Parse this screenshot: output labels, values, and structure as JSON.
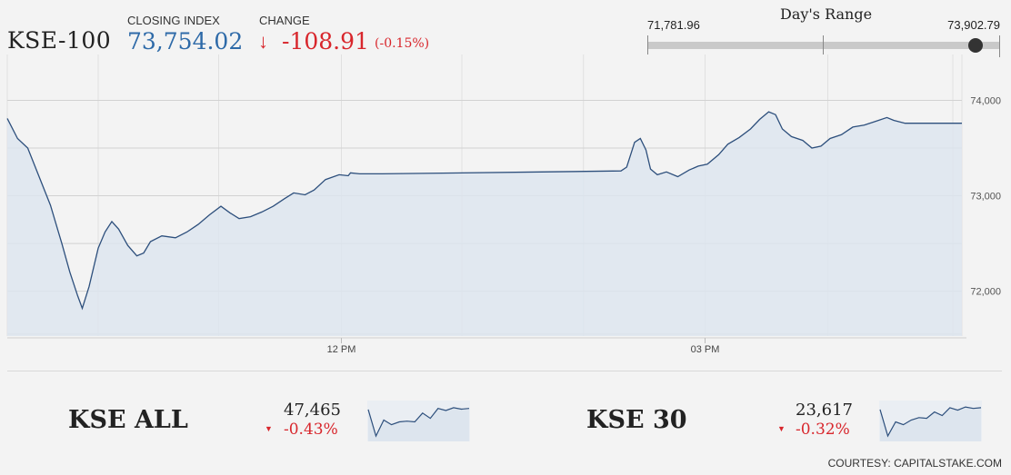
{
  "header": {
    "index_name": "KSE-100",
    "closing_label": "CLOSING INDEX",
    "closing_value": "73,754.02",
    "change_label": "CHANGE",
    "change_arrow": "↓",
    "change_value": "-108.91",
    "change_percent": "(-0.15%)"
  },
  "range": {
    "title": "Day's Range",
    "low": "71,781.96",
    "high": "73,902.79",
    "current_position": 0.93
  },
  "chart_data": {
    "type": "area",
    "title": "",
    "xlabel": "",
    "ylabel": "",
    "x_ticks": [
      "12 PM",
      "03 PM"
    ],
    "y_ticks": [
      "74,000",
      "73,000",
      "72,000"
    ],
    "ylim": [
      71530,
      74480
    ],
    "grid": true,
    "series": [
      {
        "values": [
          [
            0,
            73810
          ],
          [
            9,
            73600
          ],
          [
            18,
            73500
          ],
          [
            28,
            73200
          ],
          [
            38,
            72900
          ],
          [
            48,
            72500
          ],
          [
            55,
            72200
          ],
          [
            62,
            71950
          ],
          [
            66,
            71820
          ],
          [
            72,
            72050
          ],
          [
            80,
            72450
          ],
          [
            86,
            72620
          ],
          [
            92,
            72730
          ],
          [
            98,
            72650
          ],
          [
            106,
            72480
          ],
          [
            114,
            72370
          ],
          [
            120,
            72400
          ],
          [
            126,
            72520
          ],
          [
            136,
            72580
          ],
          [
            148,
            72560
          ],
          [
            158,
            72620
          ],
          [
            168,
            72700
          ],
          [
            178,
            72800
          ],
          [
            188,
            72890
          ],
          [
            196,
            72820
          ],
          [
            204,
            72760
          ],
          [
            214,
            72780
          ],
          [
            224,
            72830
          ],
          [
            234,
            72890
          ],
          [
            244,
            72970
          ],
          [
            252,
            73030
          ],
          [
            262,
            73010
          ],
          [
            270,
            73060
          ],
          [
            280,
            73170
          ],
          [
            292,
            73220
          ],
          [
            300,
            73210
          ],
          [
            302,
            73240
          ],
          [
            310,
            73230
          ],
          [
            330,
            73230
          ],
          [
            470,
            73250
          ],
          [
            540,
            73260
          ],
          [
            545,
            73300
          ],
          [
            552,
            73560
          ],
          [
            557,
            73600
          ],
          [
            562,
            73480
          ],
          [
            566,
            73280
          ],
          [
            572,
            73220
          ],
          [
            580,
            73250
          ],
          [
            590,
            73200
          ],
          [
            600,
            73270
          ],
          [
            608,
            73310
          ],
          [
            616,
            73330
          ],
          [
            626,
            73430
          ],
          [
            634,
            73540
          ],
          [
            644,
            73610
          ],
          [
            654,
            73700
          ],
          [
            662,
            73800
          ],
          [
            670,
            73880
          ],
          [
            676,
            73850
          ],
          [
            682,
            73700
          ],
          [
            690,
            73620
          ],
          [
            700,
            73580
          ],
          [
            708,
            73500
          ],
          [
            716,
            73520
          ],
          [
            724,
            73600
          ],
          [
            734,
            73640
          ],
          [
            744,
            73720
          ],
          [
            754,
            73740
          ],
          [
            764,
            73780
          ],
          [
            774,
            73820
          ],
          [
            780,
            73790
          ],
          [
            790,
            73760
          ],
          [
            840,
            73760
          ]
        ]
      }
    ]
  },
  "sub_indices": [
    {
      "name": "KSE ALL",
      "value": "47,465",
      "arrow": "▼",
      "change": "-0.43%",
      "spark": [
        0.85,
        0.1,
        0.55,
        0.42,
        0.5,
        0.52,
        0.5,
        0.75,
        0.6,
        0.88,
        0.82,
        0.9,
        0.86,
        0.88
      ]
    },
    {
      "name": "KSE 30",
      "value": "23,617",
      "arrow": "▼",
      "change": "-0.32%",
      "spark": [
        0.85,
        0.1,
        0.5,
        0.42,
        0.55,
        0.62,
        0.6,
        0.78,
        0.68,
        0.9,
        0.83,
        0.92,
        0.88,
        0.9
      ]
    }
  ],
  "footer": {
    "courtesy": "COURTESY: CAPITALSTAKE.COM"
  },
  "colors": {
    "line": "#2d4f7c",
    "area": "#dde5ee",
    "up": "#2e6aa8",
    "down": "#d8262c"
  }
}
